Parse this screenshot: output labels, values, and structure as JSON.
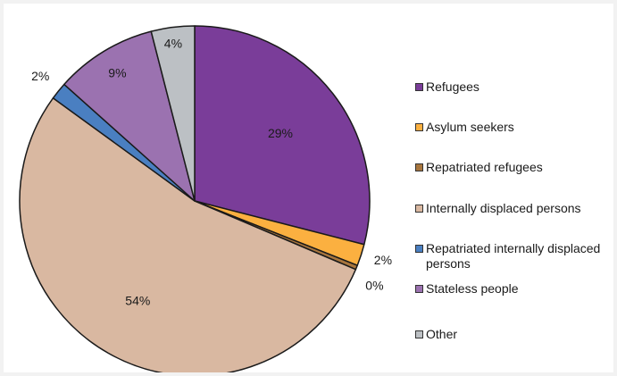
{
  "chart_data": {
    "type": "pie",
    "title": "",
    "legend": "right",
    "series": [
      {
        "name": "Refugees",
        "value": 29,
        "label": "29%",
        "color": "#7a3d99"
      },
      {
        "name": "Asylum seekers",
        "value": 2,
        "label": "2%",
        "color": "#fbb040"
      },
      {
        "name": "Repatriated refugees",
        "value": 0.4,
        "label": "0%",
        "color": "#a8763e"
      },
      {
        "name": "Internally displaced persons",
        "value": 53.6,
        "label": "54%",
        "color": "#d9b8a1"
      },
      {
        "name": "Repatriated internally displaced persons",
        "value": 1.6,
        "label": "2%",
        "color": "#4a7fc1"
      },
      {
        "name": "Stateless people",
        "value": 9.4,
        "label": "9%",
        "color": "#9b72b0"
      },
      {
        "name": "Other",
        "value": 4,
        "label": "4%",
        "color": "#bcc0c4"
      }
    ]
  }
}
